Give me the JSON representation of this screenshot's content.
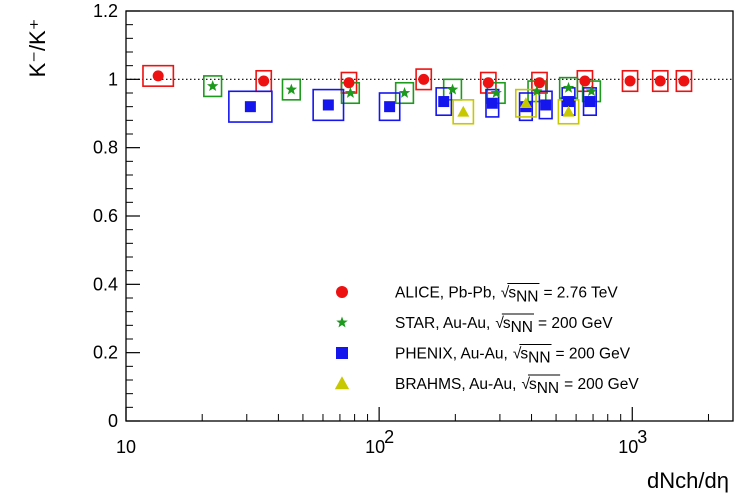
{
  "chart_data": {
    "type": "scatter",
    "title": "",
    "xlabel": "dNch/dη",
    "ylabel": "K⁻/K⁺",
    "xscale": "log",
    "xlim": [
      10,
      2500
    ],
    "ylim": [
      0,
      1.2
    ],
    "xticks": [
      "10",
      "10²",
      "10³"
    ],
    "yticks": [
      "0",
      "0.2",
      "0.4",
      "0.6",
      "0.8",
      "1",
      "1.2"
    ],
    "reference_line": {
      "y": 1.0,
      "style": "dotted"
    },
    "legend_position": "bottom-right",
    "series": [
      {
        "name": "ALICE, Pb-Pb, √sNN = 2.76 TeV",
        "experiment": "ALICE, Pb-Pb,",
        "energy": "= 2.76 TeV",
        "marker": "circle",
        "color": "#ee1111",
        "points": [
          {
            "x": 13.4,
            "y": 1.01,
            "sys": 0.03,
            "bw": 0.06
          },
          {
            "x": 35,
            "y": 0.995,
            "sys": 0.03,
            "bw": 0.03
          },
          {
            "x": 76,
            "y": 0.99,
            "sys": 0.03,
            "bw": 0.03
          },
          {
            "x": 150,
            "y": 1.0,
            "sys": 0.03,
            "bw": 0.03
          },
          {
            "x": 270,
            "y": 0.99,
            "sys": 0.03,
            "bw": 0.03
          },
          {
            "x": 430,
            "y": 0.99,
            "sys": 0.03,
            "bw": 0.03
          },
          {
            "x": 650,
            "y": 0.995,
            "sys": 0.03,
            "bw": 0.03
          },
          {
            "x": 980,
            "y": 0.995,
            "sys": 0.03,
            "bw": 0.03
          },
          {
            "x": 1290,
            "y": 0.995,
            "sys": 0.03,
            "bw": 0.03
          },
          {
            "x": 1600,
            "y": 0.995,
            "sys": 0.03,
            "bw": 0.03
          }
        ]
      },
      {
        "name": "STAR, Au-Au, √sNN = 200 GeV",
        "experiment": "STAR, Au-Au,",
        "energy": "= 200 GeV",
        "marker": "star",
        "color": "#1d9a1d",
        "points": [
          {
            "x": 22,
            "y": 0.98,
            "sys": 0.03,
            "bw": 0.035
          },
          {
            "x": 45,
            "y": 0.97,
            "sys": 0.03,
            "bw": 0.035
          },
          {
            "x": 77,
            "y": 0.96,
            "sys": 0.03,
            "bw": 0.035
          },
          {
            "x": 126,
            "y": 0.96,
            "sys": 0.03,
            "bw": 0.035
          },
          {
            "x": 195,
            "y": 0.97,
            "sys": 0.03,
            "bw": 0.035
          },
          {
            "x": 290,
            "y": 0.96,
            "sys": 0.03,
            "bw": 0.035
          },
          {
            "x": 420,
            "y": 0.965,
            "sys": 0.03,
            "bw": 0.035
          },
          {
            "x": 560,
            "y": 0.975,
            "sys": 0.03,
            "bw": 0.035
          },
          {
            "x": 690,
            "y": 0.965,
            "sys": 0.03,
            "bw": 0.035
          }
        ]
      },
      {
        "name": "PHENIX, Au-Au, √sNN = 200 GeV",
        "experiment": "PHENIX, Au-Au,",
        "energy": "= 200 GeV",
        "marker": "square",
        "color": "#1515ee",
        "points": [
          {
            "x": 31,
            "y": 0.92,
            "sys": 0.045,
            "bw": 0.085
          },
          {
            "x": 63,
            "y": 0.925,
            "sys": 0.045,
            "bw": 0.06
          },
          {
            "x": 110,
            "y": 0.92,
            "sys": 0.04,
            "bw": 0.04
          },
          {
            "x": 180,
            "y": 0.935,
            "sys": 0.04,
            "bw": 0.03
          },
          {
            "x": 280,
            "y": 0.93,
            "sys": 0.04,
            "bw": 0.025
          },
          {
            "x": 380,
            "y": 0.92,
            "sys": 0.04,
            "bw": 0.025
          },
          {
            "x": 455,
            "y": 0.925,
            "sys": 0.04,
            "bw": 0.025
          },
          {
            "x": 560,
            "y": 0.935,
            "sys": 0.04,
            "bw": 0.025
          },
          {
            "x": 680,
            "y": 0.935,
            "sys": 0.04,
            "bw": 0.025
          }
        ]
      },
      {
        "name": "BRAHMS, Au-Au, √sNN = 200 GeV",
        "experiment": "BRAHMS, Au-Au,",
        "energy": "= 200 GeV",
        "marker": "triangle",
        "color": "#c8c800",
        "points": [
          {
            "x": 215,
            "y": 0.905,
            "sys": 0.035,
            "bw": 0.04
          },
          {
            "x": 380,
            "y": 0.93,
            "sys": 0.04,
            "bw": 0.04
          },
          {
            "x": 560,
            "y": 0.905,
            "sys": 0.035,
            "bw": 0.04
          }
        ]
      }
    ]
  }
}
